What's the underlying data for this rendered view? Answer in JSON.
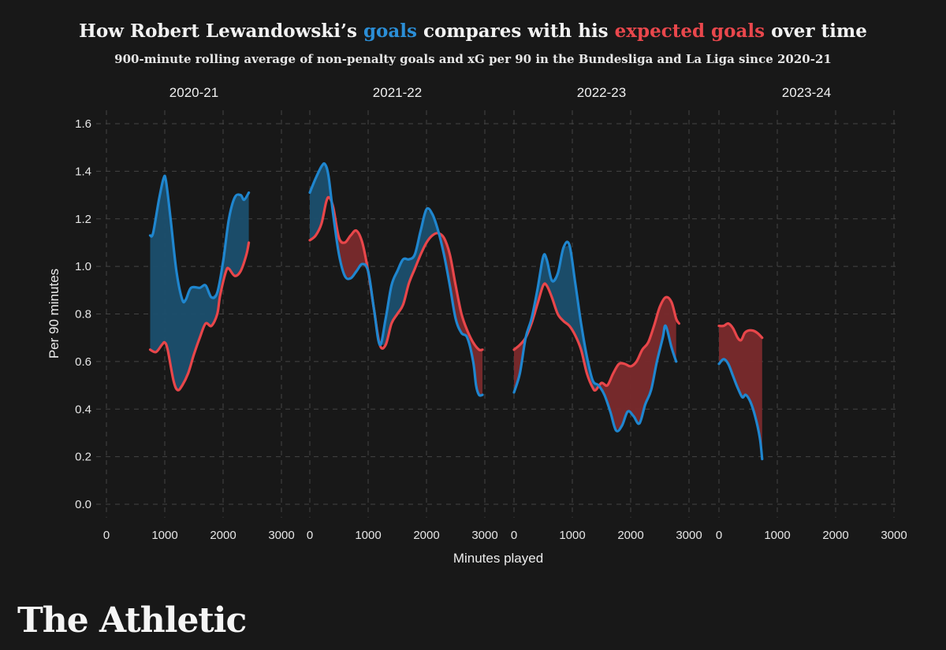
{
  "header": {
    "title_pre": "How Robert Lewandowski’s ",
    "title_goals": "goals",
    "title_mid": " compares with his ",
    "title_xg": "expected goals",
    "title_post": " over time",
    "subtitle": "900-minute rolling average of non-penalty goals and xG per 90 in the Bundesliga and La Liga since 2020-21"
  },
  "brand": {
    "logo_text": "The Athletic"
  },
  "colors": {
    "goals": "#1f86cf",
    "xg": "#e8464a",
    "goals_fill": "#1b4f6e",
    "xg_fill": "#7a2a2c",
    "background": "#181818"
  },
  "chart_data": {
    "type": "line",
    "title": "How Robert Lewandowski’s goals compares with his expected goals over time",
    "xlabel": "Minutes played",
    "ylabel": "Per 90 minutes",
    "xlim": [
      0,
      3000
    ],
    "ylim": [
      0,
      1.6
    ],
    "xticks": [
      0,
      1000,
      2000,
      3000
    ],
    "yticks": [
      0.0,
      0.2,
      0.4,
      0.6,
      0.8,
      1.0,
      1.2,
      1.4,
      1.6
    ],
    "ytick_labels": [
      "0.0",
      "0.2",
      "0.4",
      "0.6",
      "0.8",
      "1.0",
      "1.2",
      "1.4",
      "1.6"
    ],
    "legend": [
      "goals",
      "expected goals"
    ],
    "grid": true,
    "panels": [
      {
        "season": "2020-21",
        "goals": [
          [
            750,
            1.13
          ],
          [
            800,
            1.14
          ],
          [
            900,
            1.28
          ],
          [
            980,
            1.37
          ],
          [
            1020,
            1.36
          ],
          [
            1100,
            1.2
          ],
          [
            1200,
            0.98
          ],
          [
            1300,
            0.86
          ],
          [
            1360,
            0.86
          ],
          [
            1450,
            0.91
          ],
          [
            1600,
            0.91
          ],
          [
            1700,
            0.92
          ],
          [
            1800,
            0.87
          ],
          [
            1900,
            0.89
          ],
          [
            2000,
            1.02
          ],
          [
            2100,
            1.2
          ],
          [
            2200,
            1.29
          ],
          [
            2300,
            1.3
          ],
          [
            2360,
            1.28
          ],
          [
            2440,
            1.31
          ]
        ],
        "xg": [
          [
            750,
            0.65
          ],
          [
            850,
            0.64
          ],
          [
            950,
            0.67
          ],
          [
            1000,
            0.68
          ],
          [
            1050,
            0.65
          ],
          [
            1150,
            0.52
          ],
          [
            1220,
            0.48
          ],
          [
            1300,
            0.5
          ],
          [
            1400,
            0.55
          ],
          [
            1500,
            0.63
          ],
          [
            1600,
            0.7
          ],
          [
            1700,
            0.76
          ],
          [
            1800,
            0.75
          ],
          [
            1900,
            0.8
          ],
          [
            1950,
            0.88
          ],
          [
            2050,
            0.98
          ],
          [
            2100,
            0.99
          ],
          [
            2200,
            0.96
          ],
          [
            2300,
            0.98
          ],
          [
            2400,
            1.05
          ],
          [
            2440,
            1.1
          ]
        ]
      },
      {
        "season": "2021-22",
        "goals": [
          [
            0,
            1.31
          ],
          [
            100,
            1.37
          ],
          [
            200,
            1.42
          ],
          [
            260,
            1.43
          ],
          [
            320,
            1.38
          ],
          [
            400,
            1.22
          ],
          [
            500,
            1.05
          ],
          [
            600,
            0.96
          ],
          [
            700,
            0.95
          ],
          [
            800,
            0.98
          ],
          [
            900,
            1.01
          ],
          [
            1000,
            0.98
          ],
          [
            1100,
            0.82
          ],
          [
            1200,
            0.67
          ],
          [
            1300,
            0.78
          ],
          [
            1400,
            0.92
          ],
          [
            1500,
            0.98
          ],
          [
            1600,
            1.03
          ],
          [
            1700,
            1.03
          ],
          [
            1800,
            1.05
          ],
          [
            1900,
            1.15
          ],
          [
            2000,
            1.24
          ],
          [
            2100,
            1.22
          ],
          [
            2200,
            1.15
          ],
          [
            2300,
            1.05
          ],
          [
            2400,
            0.92
          ],
          [
            2500,
            0.78
          ],
          [
            2600,
            0.72
          ],
          [
            2700,
            0.7
          ],
          [
            2800,
            0.6
          ],
          [
            2850,
            0.5
          ],
          [
            2900,
            0.46
          ],
          [
            2960,
            0.46
          ]
        ],
        "xg": [
          [
            0,
            1.11
          ],
          [
            100,
            1.13
          ],
          [
            200,
            1.18
          ],
          [
            280,
            1.27
          ],
          [
            330,
            1.29
          ],
          [
            400,
            1.25
          ],
          [
            500,
            1.12
          ],
          [
            600,
            1.1
          ],
          [
            700,
            1.13
          ],
          [
            800,
            1.15
          ],
          [
            900,
            1.1
          ],
          [
            1000,
            0.98
          ],
          [
            1100,
            0.82
          ],
          [
            1200,
            0.67
          ],
          [
            1300,
            0.67
          ],
          [
            1400,
            0.76
          ],
          [
            1500,
            0.8
          ],
          [
            1600,
            0.84
          ],
          [
            1700,
            0.93
          ],
          [
            1800,
            0.99
          ],
          [
            1900,
            1.05
          ],
          [
            2000,
            1.1
          ],
          [
            2100,
            1.13
          ],
          [
            2200,
            1.14
          ],
          [
            2300,
            1.12
          ],
          [
            2400,
            1.05
          ],
          [
            2500,
            0.92
          ],
          [
            2600,
            0.8
          ],
          [
            2700,
            0.73
          ],
          [
            2800,
            0.68
          ],
          [
            2900,
            0.65
          ],
          [
            2960,
            0.65
          ]
        ]
      },
      {
        "season": "2022-23",
        "goals": [
          [
            0,
            0.47
          ],
          [
            100,
            0.55
          ],
          [
            200,
            0.7
          ],
          [
            300,
            0.78
          ],
          [
            400,
            0.9
          ],
          [
            500,
            1.04
          ],
          [
            560,
            1.03
          ],
          [
            650,
            0.94
          ],
          [
            750,
            0.97
          ],
          [
            850,
            1.08
          ],
          [
            950,
            1.09
          ],
          [
            1050,
            0.93
          ],
          [
            1150,
            0.76
          ],
          [
            1250,
            0.62
          ],
          [
            1350,
            0.52
          ],
          [
            1450,
            0.5
          ],
          [
            1550,
            0.46
          ],
          [
            1650,
            0.39
          ],
          [
            1750,
            0.31
          ],
          [
            1850,
            0.33
          ],
          [
            1950,
            0.39
          ],
          [
            2050,
            0.37
          ],
          [
            2150,
            0.34
          ],
          [
            2250,
            0.42
          ],
          [
            2350,
            0.48
          ],
          [
            2450,
            0.6
          ],
          [
            2550,
            0.7
          ],
          [
            2600,
            0.75
          ],
          [
            2700,
            0.66
          ],
          [
            2780,
            0.6
          ]
        ],
        "xg": [
          [
            0,
            0.65
          ],
          [
            100,
            0.67
          ],
          [
            200,
            0.7
          ],
          [
            300,
            0.76
          ],
          [
            400,
            0.84
          ],
          [
            500,
            0.92
          ],
          [
            560,
            0.92
          ],
          [
            650,
            0.87
          ],
          [
            750,
            0.8
          ],
          [
            850,
            0.77
          ],
          [
            950,
            0.75
          ],
          [
            1050,
            0.71
          ],
          [
            1150,
            0.65
          ],
          [
            1250,
            0.55
          ],
          [
            1350,
            0.49
          ],
          [
            1400,
            0.48
          ],
          [
            1500,
            0.51
          ],
          [
            1600,
            0.5
          ],
          [
            1700,
            0.55
          ],
          [
            1800,
            0.59
          ],
          [
            1900,
            0.59
          ],
          [
            2000,
            0.58
          ],
          [
            2100,
            0.6
          ],
          [
            2200,
            0.65
          ],
          [
            2300,
            0.68
          ],
          [
            2400,
            0.75
          ],
          [
            2500,
            0.83
          ],
          [
            2600,
            0.87
          ],
          [
            2700,
            0.85
          ],
          [
            2780,
            0.78
          ],
          [
            2830,
            0.76
          ]
        ]
      },
      {
        "season": "2023-24",
        "goals": [
          [
            0,
            0.59
          ],
          [
            80,
            0.61
          ],
          [
            160,
            0.59
          ],
          [
            240,
            0.54
          ],
          [
            320,
            0.49
          ],
          [
            400,
            0.45
          ],
          [
            460,
            0.46
          ],
          [
            540,
            0.43
          ],
          [
            620,
            0.37
          ],
          [
            700,
            0.28
          ],
          [
            740,
            0.19
          ]
        ],
        "xg": [
          [
            0,
            0.75
          ],
          [
            80,
            0.75
          ],
          [
            160,
            0.76
          ],
          [
            240,
            0.74
          ],
          [
            320,
            0.7
          ],
          [
            380,
            0.69
          ],
          [
            440,
            0.72
          ],
          [
            500,
            0.73
          ],
          [
            580,
            0.73
          ],
          [
            660,
            0.72
          ],
          [
            740,
            0.7
          ]
        ]
      }
    ]
  }
}
